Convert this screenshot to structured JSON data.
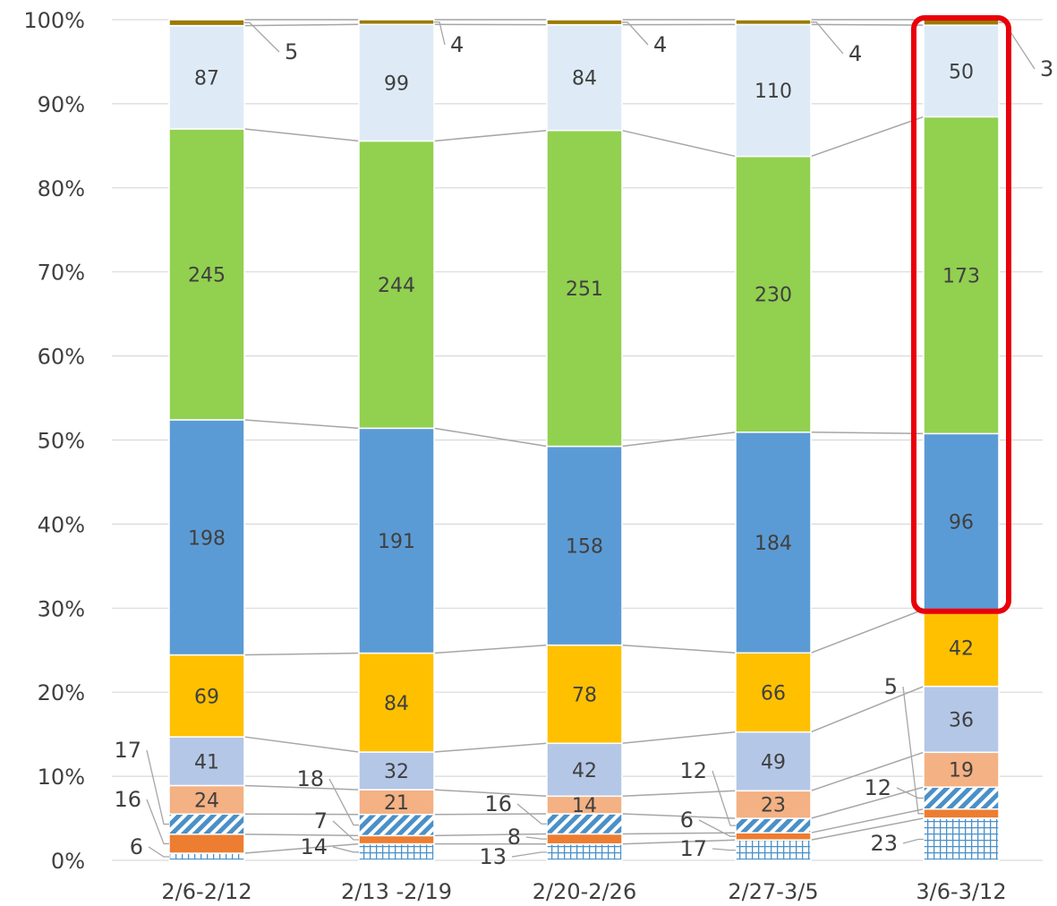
{
  "chart_data": {
    "type": "bar",
    "stacked": "percent",
    "categories": [
      "2/6-2/12",
      "2/13 -2/19",
      "2/20-2/26",
      "2/27-3/5",
      "3/6-3/12"
    ],
    "y_ticks": [
      "0%",
      "10%",
      "20%",
      "30%",
      "40%",
      "50%",
      "60%",
      "70%",
      "80%",
      "90%",
      "100%"
    ],
    "ylim": [
      0,
      100
    ],
    "grid": true,
    "highlighted_category": "3/6-3/12",
    "highlight_color": "#e8000b",
    "series": [
      {
        "values": [
          6,
          14,
          13,
          17,
          23
        ],
        "color": "#4a90c8",
        "pattern": "grid"
      },
      {
        "values": [
          16,
          7,
          8,
          6,
          5
        ],
        "color": "#ed7d31",
        "pattern": "solid"
      },
      {
        "values": [
          17,
          18,
          16,
          12,
          12
        ],
        "color": "#4a90c8",
        "pattern": "diagonal"
      },
      {
        "values": [
          24,
          21,
          14,
          23,
          19
        ],
        "color": "#f4b183",
        "pattern": "solid"
      },
      {
        "values": [
          41,
          32,
          42,
          49,
          36
        ],
        "color": "#b4c7e7",
        "pattern": "solid"
      },
      {
        "values": [
          69,
          84,
          78,
          66,
          42
        ],
        "color": "#ffc000",
        "pattern": "solid"
      },
      {
        "values": [
          198,
          191,
          158,
          184,
          96
        ],
        "color": "#5b9bd5",
        "pattern": "solid"
      },
      {
        "values": [
          245,
          244,
          251,
          230,
          173
        ],
        "color": "#92d050",
        "pattern": "solid"
      },
      {
        "values": [
          87,
          99,
          84,
          110,
          50
        ],
        "color": "#deebf7",
        "pattern": "solid"
      },
      {
        "values": [
          5,
          4,
          4,
          4,
          3
        ],
        "color": "#9c7a00",
        "pattern": "solid"
      }
    ]
  }
}
